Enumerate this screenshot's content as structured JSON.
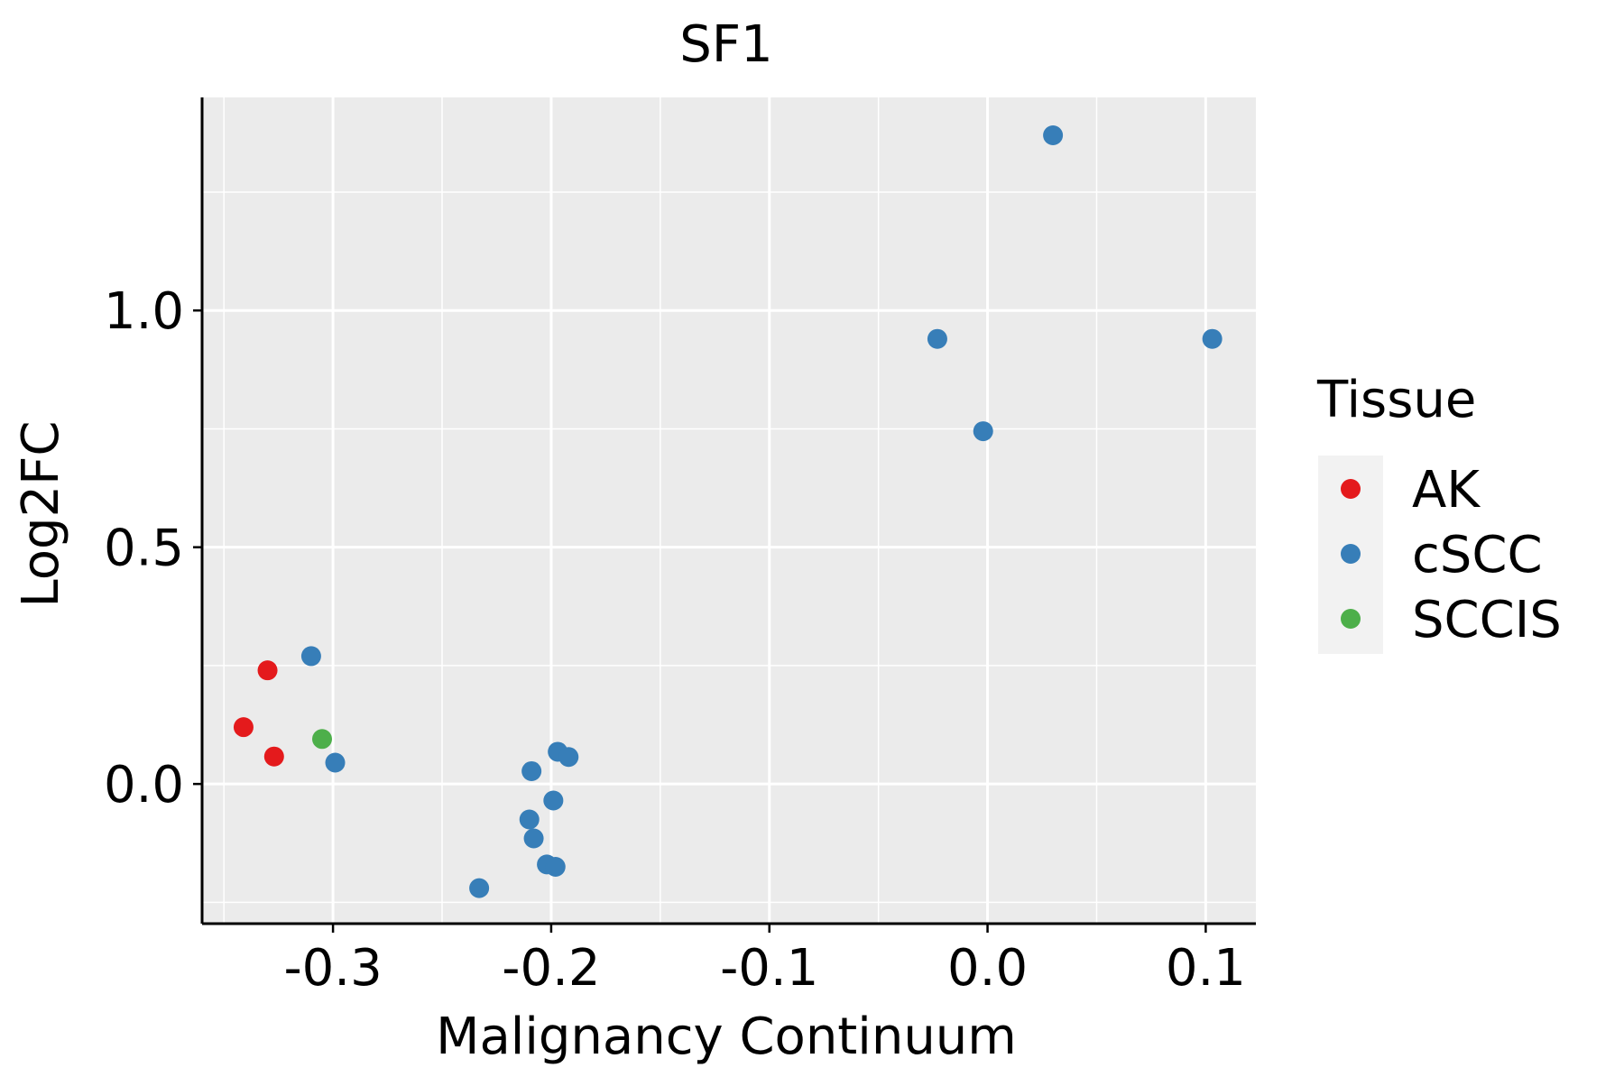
{
  "chart_data": {
    "type": "scatter",
    "title": "SF1",
    "xlabel": "Malignancy Continuum",
    "ylabel": "Log2FC",
    "xlim": [
      -0.36,
      0.123
    ],
    "ylim": [
      -0.295,
      1.45
    ],
    "x_ticks": [
      -0.3,
      -0.2,
      -0.1,
      0.0,
      0.1
    ],
    "x_tick_labels": [
      "-0.3",
      "-0.2",
      "-0.1",
      "0.0",
      "0.1"
    ],
    "y_ticks": [
      0.0,
      0.5,
      1.0
    ],
    "y_tick_labels": [
      "0.0",
      "0.5",
      "1.0"
    ],
    "grid": true,
    "legend": {
      "title": "Tissue",
      "position": "right",
      "entries": [
        "AK",
        "cSCC",
        "SCCIS"
      ]
    },
    "colors": {
      "AK": "#E41A1C",
      "cSCC": "#377EB8",
      "SCCIS": "#4DAF4A",
      "panel_background": "#EBEBEB",
      "grid": "#FFFFFF"
    },
    "series": [
      {
        "name": "AK",
        "points": [
          {
            "x": -0.33,
            "y": 0.24
          },
          {
            "x": -0.341,
            "y": 0.12
          },
          {
            "x": -0.327,
            "y": 0.058
          }
        ]
      },
      {
        "name": "cSCC",
        "points": [
          {
            "x": 0.03,
            "y": 1.37
          },
          {
            "x": -0.023,
            "y": 0.94
          },
          {
            "x": 0.103,
            "y": 0.94
          },
          {
            "x": -0.002,
            "y": 0.745
          },
          {
            "x": -0.31,
            "y": 0.27
          },
          {
            "x": -0.299,
            "y": 0.045
          },
          {
            "x": -0.197,
            "y": 0.068
          },
          {
            "x": -0.192,
            "y": 0.057
          },
          {
            "x": -0.209,
            "y": 0.027
          },
          {
            "x": -0.199,
            "y": -0.035
          },
          {
            "x": -0.21,
            "y": -0.075
          },
          {
            "x": -0.208,
            "y": -0.115
          },
          {
            "x": -0.202,
            "y": -0.17
          },
          {
            "x": -0.198,
            "y": -0.175
          },
          {
            "x": -0.233,
            "y": -0.22
          }
        ]
      },
      {
        "name": "SCCIS",
        "points": [
          {
            "x": -0.305,
            "y": 0.095
          }
        ]
      }
    ]
  }
}
